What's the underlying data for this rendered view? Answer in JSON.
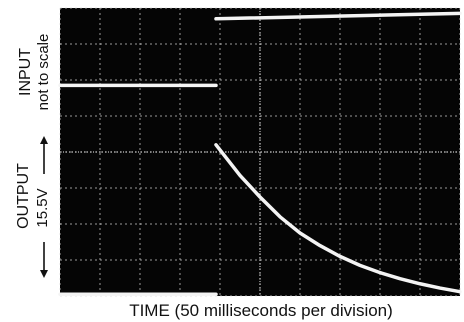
{
  "chart_data": {
    "type": "line",
    "x_axis_label": "TIME (50 milliseconds per division)",
    "input_label": "INPUT",
    "input_note": "not to scale",
    "output_label": "OUTPUT",
    "output_scale_label": "15.5V",
    "grid": true,
    "x_divisions": 10,
    "y_divisions": 8,
    "x_range_divisions": [
      0,
      10
    ],
    "y_range_divisions": [
      0,
      8
    ],
    "series": [
      {
        "role": "input",
        "x": [
          0.0,
          3.9,
          3.9,
          10.0
        ],
        "y": [
          5.85,
          5.85,
          7.7,
          7.85
        ]
      },
      {
        "role": "output",
        "x": [
          0.0,
          3.9,
          3.9,
          4.5,
          5.0,
          5.5,
          6.0,
          6.5,
          7.0,
          7.5,
          8.0,
          8.5,
          9.0,
          9.5,
          10.0
        ],
        "y": [
          0.05,
          0.05,
          4.2,
          3.35,
          2.75,
          2.2,
          1.75,
          1.4,
          1.1,
          0.85,
          0.65,
          0.48,
          0.34,
          0.22,
          0.12
        ]
      }
    ],
    "colors": {
      "screen": "#050505",
      "grid": "#d8d8d8",
      "trace": "#f4f4f4"
    }
  }
}
